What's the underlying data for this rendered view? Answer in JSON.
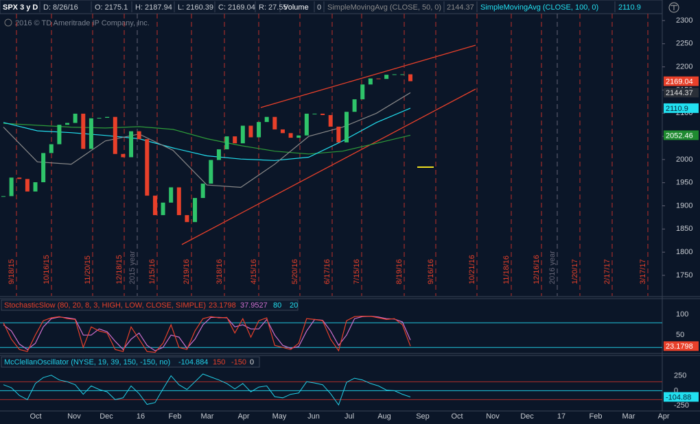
{
  "header": {
    "symbol": "SPX 3 y D",
    "date": "D: 8/26/16",
    "open": "O: 2175.1",
    "high": "H: 2187.94",
    "low": "L: 2160.39",
    "close": "C: 2169.04",
    "range": "R: 27.55",
    "volume_label": "Volume",
    "volume": "0",
    "sma50_label": "SimpleMovingAvg (CLOSE, 50, 0)",
    "sma100_label": "SimpleMovingAvg (CLOSE, 100, 0)"
  },
  "copyright": "2016 © TD Ameritrade IP Company, Inc.",
  "date_labels": [
    "9/18/15",
    "10/16/15",
    "11/20/15",
    "12/18/15",
    "2015 year",
    "1/15/16",
    "2/19/16",
    "3/18/16",
    "4/15/16",
    "5/20/16",
    "6/17/16",
    "7/15/16",
    "8/19/16",
    "9/16/16",
    "10/21/16",
    "11/18/16",
    "12/16/16",
    "2016 year",
    "1/20/17",
    "2/17/17",
    "3/17/17"
  ],
  "months": [
    "Oct",
    "Nov",
    "Dec",
    "16",
    "Feb",
    "Mar",
    "Apr",
    "May",
    "Jun",
    "Jul",
    "Aug",
    "Sep",
    "Oct",
    "Nov",
    "Dec",
    "17",
    "Feb",
    "Mar",
    "Apr"
  ],
  "price_chart": {
    "type": "candlestick",
    "ylim": [
      1705.6,
      2314.8
    ],
    "yticks": [
      1750,
      1800,
      1850,
      1900,
      1950,
      2000,
      2050,
      2100,
      2150,
      2200,
      2250,
      2300
    ],
    "closes": [
      1921,
      1961,
      1958,
      1931,
      1951,
      2014,
      2033,
      2075,
      2079,
      2099,
      2023,
      2089,
      2090,
      2092,
      2012,
      2005,
      2061,
      2044,
      1922,
      1880,
      1907,
      1940,
      1880,
      1865,
      1917,
      1948,
      1999,
      2022,
      2050,
      2035,
      2073,
      2048,
      2081,
      2092,
      2065,
      2057,
      2047,
      2052,
      2099,
      2099,
      2096,
      2071,
      2037,
      2103,
      2130,
      2162,
      2175,
      2174,
      2183,
      2184,
      2184,
      2169.04
    ],
    "up_color": "#2fc46a",
    "down_color": "#e8402a",
    "sma50": {
      "color": "#8a8a8a",
      "values": [
        2070,
        1995,
        1990,
        2040,
        2055,
        2020,
        1945,
        1940,
        1990,
        2050,
        2070,
        2100,
        2144.37
      ]
    },
    "sma100": {
      "color": "#22e0f0",
      "values": [
        2080,
        2062,
        2058,
        2052,
        2045,
        2025,
        2008,
        2001,
        1998,
        2005,
        2040,
        2080,
        2110.9
      ]
    },
    "sma200": {
      "color": "#2e9e3a",
      "values": [
        2078,
        2074,
        2070,
        2068,
        2071,
        2065,
        2045,
        2030,
        2018,
        2012,
        2018,
        2035,
        2052.46
      ]
    }
  },
  "stochastic": {
    "label": "StochasticSlow (80, 20, 8, 3, HIGH, LOW, CLOSE, SIMPLE)",
    "ylim": [
      2,
      137
    ],
    "yticks": [
      50,
      100
    ],
    "levels": [
      80,
      20
    ],
    "k": {
      "color": "#e8402a",
      "values": [
        80,
        40,
        15,
        10,
        50,
        85,
        92,
        95,
        90,
        88,
        20,
        70,
        60,
        55,
        15,
        10,
        70,
        40,
        10,
        8,
        30,
        75,
        20,
        15,
        60,
        90,
        95,
        92,
        93,
        55,
        90,
        45,
        85,
        92,
        25,
        20,
        15,
        30,
        90,
        88,
        85,
        40,
        12,
        85,
        95,
        96,
        96,
        92,
        88,
        90,
        75,
        23.1798
      ]
    },
    "d": {
      "color": "#d070d0",
      "values": [
        75,
        60,
        28,
        15,
        30,
        70,
        90,
        94,
        92,
        89,
        50,
        50,
        65,
        58,
        35,
        15,
        40,
        55,
        25,
        12,
        20,
        50,
        45,
        18,
        40,
        75,
        93,
        93,
        92,
        70,
        75,
        65,
        65,
        88,
        50,
        25,
        18,
        22,
        60,
        88,
        86,
        60,
        25,
        50,
        90,
        95,
        96,
        94,
        90,
        89,
        82,
        37.9527
      ]
    }
  },
  "mcclellan": {
    "label": "McClellanOscillator (NYSE, 19, 39, 150, -150, no)",
    "ylim": [
      -341,
      591
    ],
    "yticks": [
      250,
      0,
      -250
    ],
    "levels": [
      150,
      -150,
      0
    ],
    "color": "#22d0e8",
    "values": [
      100,
      50,
      -80,
      -150,
      120,
      220,
      260,
      180,
      150,
      100,
      -60,
      80,
      20,
      -20,
      -150,
      -120,
      80,
      -50,
      -230,
      -200,
      30,
      250,
      100,
      20,
      150,
      280,
      230,
      180,
      120,
      30,
      120,
      -20,
      60,
      80,
      -100,
      -120,
      -60,
      -40,
      150,
      130,
      100,
      -50,
      -240,
      140,
      210,
      180,
      120,
      80,
      10,
      0,
      -60,
      -104.884
    ],
    "tag_label": "-104.88"
  }
}
